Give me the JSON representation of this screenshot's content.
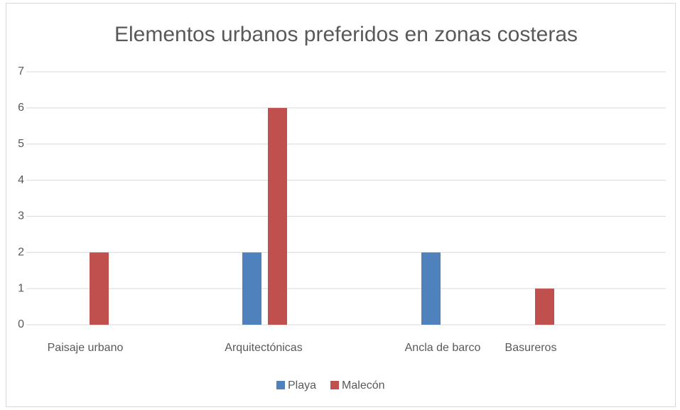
{
  "chart_data": {
    "type": "bar",
    "title": "Elementos urbanos preferidos en zonas costeras",
    "categories": [
      "Paisaje urbano",
      "Arquitectónicas",
      "Ancla de barco",
      "Basureros"
    ],
    "series": [
      {
        "name": "Playa",
        "color": "#4f81bd",
        "values": [
          0,
          2,
          2,
          0
        ]
      },
      {
        "name": "Malecón",
        "color": "#c0504d",
        "values": [
          2,
          6,
          0,
          1
        ]
      }
    ],
    "ylim": [
      0,
      7
    ],
    "yticks": [
      0,
      1,
      2,
      3,
      4,
      5,
      6,
      7
    ],
    "grid": true,
    "legend": "bottom"
  }
}
